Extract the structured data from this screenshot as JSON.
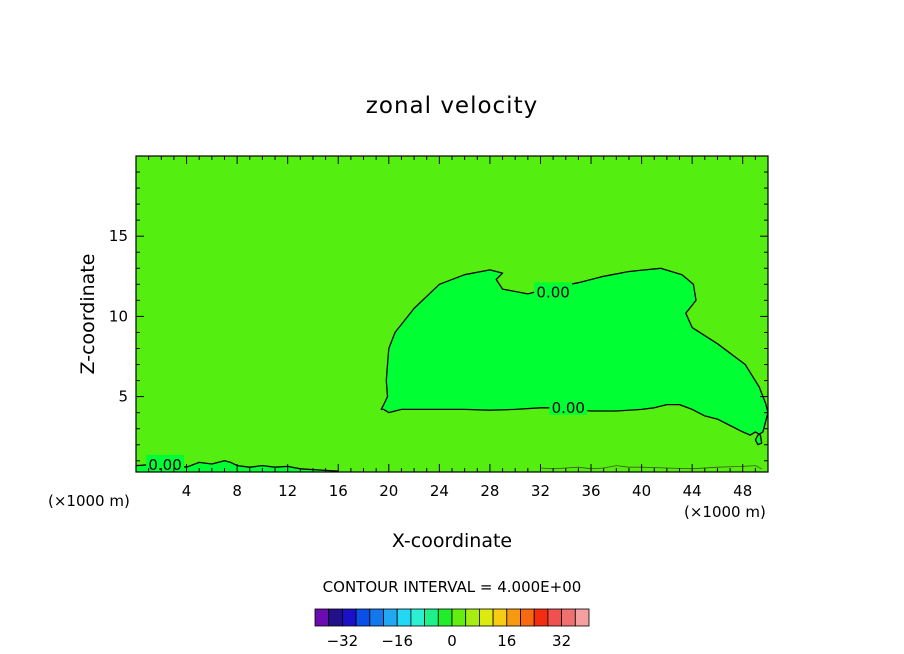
{
  "chart_data": {
    "type": "contour",
    "title": "zonal velocity",
    "xlabel": "X-coordinate",
    "ylabel": "Z-coordinate",
    "x_unit": "(×1000 m)",
    "x_unit_right": "(×1000 m)",
    "xlim": [
      0,
      50
    ],
    "ylim": [
      0.3,
      20
    ],
    "x_ticks": [
      4,
      8,
      12,
      16,
      20,
      24,
      28,
      32,
      36,
      40,
      44,
      48
    ],
    "y_ticks": [
      5,
      10,
      15
    ],
    "x_minor_step": 1,
    "y_minor_step": 1,
    "field_color": "#55ee11",
    "region_color": "#00ff33",
    "contour_interval_label": "CONTOUR INTERVAL = 4.000E+00",
    "contour_labels": [
      {
        "text": "0.00",
        "x": 33,
        "y": 11.5
      },
      {
        "text": "0.00",
        "x": 34.2,
        "y": 4.3
      },
      {
        "text": "0.00",
        "x": 2.3,
        "y": 0.75
      }
    ],
    "contours": [
      {
        "name": "upper-zero-contour",
        "points": [
          [
            19.6,
            4.2
          ],
          [
            20,
            4.0
          ],
          [
            21,
            4.2
          ],
          [
            23,
            4.2
          ],
          [
            26,
            4.2
          ],
          [
            28,
            4.15
          ],
          [
            30,
            4.2
          ],
          [
            32,
            4.3
          ],
          [
            33,
            4.3
          ],
          [
            36,
            4.1
          ],
          [
            38,
            4.1
          ],
          [
            40,
            4.2
          ],
          [
            41,
            4.3
          ],
          [
            42,
            4.5
          ],
          [
            43,
            4.5
          ],
          [
            44,
            4.2
          ],
          [
            45,
            3.8
          ],
          [
            46,
            3.6
          ],
          [
            47,
            3.2
          ],
          [
            48,
            2.8
          ],
          [
            48.6,
            2.6
          ],
          [
            49,
            2.8
          ],
          [
            49.4,
            2.6
          ],
          [
            49.5,
            2.1
          ],
          [
            49.2,
            2.0
          ],
          [
            49,
            2.3
          ],
          [
            49.2,
            2.6
          ],
          [
            49.6,
            2.8
          ],
          [
            50,
            4.0
          ],
          [
            49.8,
            4.6
          ],
          [
            49.3,
            5.6
          ],
          [
            48.2,
            7.0
          ],
          [
            46,
            8.3
          ],
          [
            44,
            9.3
          ],
          [
            43.5,
            10.2
          ],
          [
            44.3,
            11.0
          ],
          [
            44.1,
            12.0
          ],
          [
            43.2,
            12.6
          ],
          [
            41.5,
            13.0
          ],
          [
            39,
            12.8
          ],
          [
            37,
            12.5
          ],
          [
            35,
            12.1
          ],
          [
            33,
            11.8
          ],
          [
            31,
            11.4
          ],
          [
            29,
            11.7
          ],
          [
            28.5,
            12.3
          ],
          [
            29,
            12.7
          ],
          [
            28,
            12.9
          ],
          [
            26,
            12.6
          ],
          [
            24,
            12.0
          ],
          [
            22,
            10.5
          ],
          [
            20.5,
            9.0
          ],
          [
            20,
            8.0
          ],
          [
            19.9,
            7.0
          ],
          [
            19.8,
            6.0
          ],
          [
            19.9,
            5.0
          ],
          [
            19.6,
            4.5
          ],
          [
            19.4,
            4.2
          ]
        ]
      },
      {
        "name": "lower-zero-contour",
        "points": [
          [
            0,
            0.7
          ],
          [
            1,
            0.75
          ],
          [
            2,
            0.7
          ],
          [
            3,
            0.75
          ],
          [
            4,
            0.6
          ],
          [
            5,
            0.9
          ],
          [
            6,
            0.8
          ],
          [
            7,
            1.0
          ],
          [
            7.5,
            0.9
          ],
          [
            8,
            0.7
          ],
          [
            9,
            0.6
          ],
          [
            10,
            0.7
          ],
          [
            11,
            0.6
          ],
          [
            12,
            0.65
          ],
          [
            13,
            0.5
          ],
          [
            14,
            0.45
          ],
          [
            15,
            0.4
          ],
          [
            16,
            0.35
          ]
        ]
      },
      {
        "name": "surface-contour",
        "points": [
          [
            32,
            0.55
          ],
          [
            33,
            0.5
          ],
          [
            34,
            0.55
          ],
          [
            35,
            0.6
          ],
          [
            36,
            0.5
          ],
          [
            37,
            0.55
          ],
          [
            38,
            0.7
          ],
          [
            39,
            0.6
          ],
          [
            40,
            0.6
          ],
          [
            42,
            0.55
          ],
          [
            44,
            0.5
          ],
          [
            46,
            0.6
          ],
          [
            48,
            0.65
          ],
          [
            49,
            0.7
          ],
          [
            49.5,
            0.5
          ]
        ]
      }
    ],
    "colorbar": {
      "colors": [
        "#6a0cb0",
        "#22108a",
        "#1a10c8",
        "#0a4fe6",
        "#1378ec",
        "#22a8f2",
        "#22d8f5",
        "#2cf0d2",
        "#1ef08a",
        "#20ee2a",
        "#64ee10",
        "#a6ee12",
        "#dcea10",
        "#f8cc10",
        "#f89a10",
        "#f86a10",
        "#f42d10",
        "#f05050",
        "#f07070",
        "#f4a0a0"
      ],
      "tick_labels": [
        {
          "label": "−32",
          "index": 2
        },
        {
          "label": "−16",
          "index": 6
        },
        {
          "label": "0",
          "index": 10
        },
        {
          "label": "16",
          "index": 14
        },
        {
          "label": "32",
          "index": 18
        }
      ]
    }
  }
}
